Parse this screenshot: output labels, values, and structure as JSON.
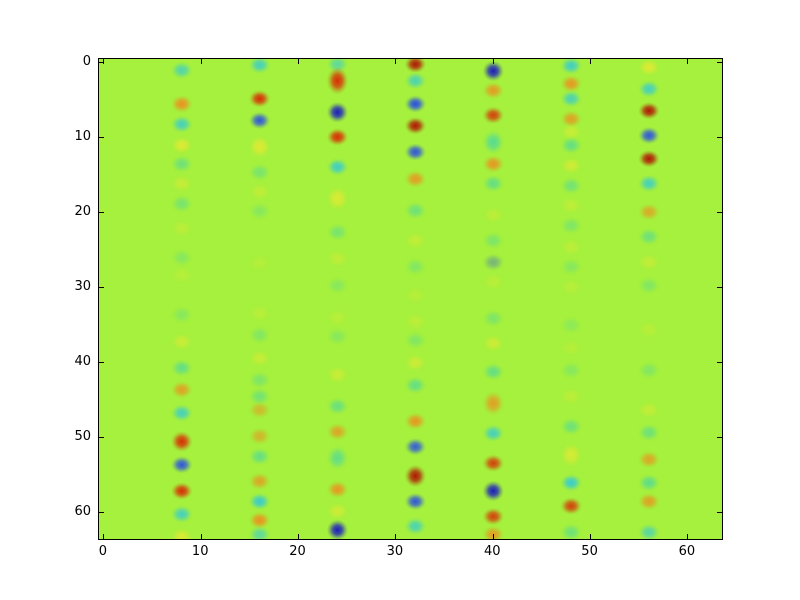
{
  "figure": {
    "background_color": "#ffffff",
    "spine_color": "#000000",
    "tick_color": "#000000"
  },
  "chart_data": {
    "type": "heatmap",
    "title": "",
    "xlabel": "",
    "ylabel": "",
    "grid": false,
    "grid_size": [
      64,
      64
    ],
    "x_range": [
      -0.5,
      63.5
    ],
    "y_range": [
      63.5,
      -0.5
    ],
    "y_axis_inverted_downward": true,
    "x_ticks": [
      0,
      10,
      20,
      30,
      40,
      50,
      60
    ],
    "y_ticks": [
      0,
      10,
      20,
      30,
      40,
      50,
      60
    ],
    "background_color": "#a5f13d",
    "palette": {
      "darkred": "#b01703",
      "red": "#d92d04",
      "orange": "#f08c1e",
      "yellow": "#e9e932",
      "teal": "#3fd4ae",
      "cyan": "#2cc8e0",
      "blue": "#2244ee",
      "darkblue": "#1b1bbf"
    },
    "description": "64x64 heatmap, uniform yellow-green background with blurred oscillating blobs along vertical stripes at x = 8,16,24,32,40,48,56",
    "columns": [
      {
        "x": 8,
        "blobs": [
          {
            "y": 1.0,
            "c": "cyan",
            "a": 0.7
          },
          {
            "y": 5.5,
            "c": "orange",
            "a": 0.95
          },
          {
            "y": 8.2,
            "c": "cyan",
            "a": 0.8
          },
          {
            "y": 11.0,
            "c": "yellow",
            "a": 0.85
          },
          {
            "y": 13.5,
            "c": "teal",
            "a": 0.55
          },
          {
            "y": 16.1,
            "c": "yellow",
            "a": 0.5
          },
          {
            "y": 18.8,
            "c": "teal",
            "a": 0.45
          },
          {
            "y": 22.1,
            "c": "yellow",
            "a": 0.35
          },
          {
            "y": 26.0,
            "c": "teal",
            "a": 0.3
          },
          {
            "y": 28.3,
            "c": "yellow",
            "a": 0.28
          },
          {
            "y": 33.6,
            "c": "teal",
            "a": 0.3
          },
          {
            "y": 37.2,
            "c": "yellow",
            "a": 0.55
          },
          {
            "y": 40.7,
            "c": "teal",
            "a": 0.65
          },
          {
            "y": 43.6,
            "c": "orange",
            "a": 0.8
          },
          {
            "y": 46.7,
            "c": "cyan",
            "a": 0.8
          },
          {
            "y": 50.5,
            "c": "red",
            "a": 1,
            "h": 1.2
          },
          {
            "y": 53.6,
            "c": "blue",
            "a": 0.9
          },
          {
            "y": 57.1,
            "c": "red",
            "a": 1
          },
          {
            "y": 60.2,
            "c": "cyan",
            "a": 0.8
          },
          {
            "y": 63.2,
            "c": "yellow",
            "a": 0.8
          }
        ]
      },
      {
        "x": 16,
        "blobs": [
          {
            "y": 0.3,
            "c": "cyan",
            "a": 0.8
          },
          {
            "y": 4.8,
            "c": "red",
            "a": 1
          },
          {
            "y": 7.7,
            "c": "blue",
            "a": 0.9
          },
          {
            "y": 11.2,
            "c": "yellow",
            "a": 0.85,
            "h": 1.3
          },
          {
            "y": 14.6,
            "c": "teal",
            "a": 0.45
          },
          {
            "y": 17.2,
            "c": "yellow",
            "a": 0.4
          },
          {
            "y": 19.8,
            "c": "teal",
            "a": 0.3
          },
          {
            "y": 26.7,
            "c": "yellow",
            "a": 0.25
          },
          {
            "y": 33.4,
            "c": "yellow",
            "a": 0.3
          },
          {
            "y": 36.3,
            "c": "teal",
            "a": 0.35
          },
          {
            "y": 39.4,
            "c": "yellow",
            "a": 0.5
          },
          {
            "y": 42.3,
            "c": "teal",
            "a": 0.4
          },
          {
            "y": 44.5,
            "c": "teal",
            "a": 0.5
          },
          {
            "y": 46.3,
            "c": "orange",
            "a": 0.55
          },
          {
            "y": 49.8,
            "c": "orange",
            "a": 0.6
          },
          {
            "y": 52.5,
            "c": "teal",
            "a": 0.65
          },
          {
            "y": 55.8,
            "c": "orange",
            "a": 0.75
          },
          {
            "y": 58.5,
            "c": "cyan",
            "a": 0.9
          },
          {
            "y": 61.0,
            "c": "orange",
            "a": 0.95
          },
          {
            "y": 62.9,
            "c": "cyan",
            "a": 0.6
          }
        ]
      },
      {
        "x": 24,
        "blobs": [
          {
            "y": 0.2,
            "c": "cyan",
            "a": 0.6
          },
          {
            "y": 2.4,
            "c": "red",
            "a": 1,
            "h": 1.6
          },
          {
            "y": 6.6,
            "c": "darkblue",
            "a": 1,
            "h": 1.2
          },
          {
            "y": 9.9,
            "c": "red",
            "a": 1
          },
          {
            "y": 13.9,
            "c": "cyan",
            "a": 0.85
          },
          {
            "y": 18.1,
            "c": "yellow",
            "a": 0.8,
            "h": 1.4
          },
          {
            "y": 22.6,
            "c": "teal",
            "a": 0.45
          },
          {
            "y": 26.1,
            "c": "yellow",
            "a": 0.4
          },
          {
            "y": 29.7,
            "c": "teal",
            "a": 0.3
          },
          {
            "y": 34.0,
            "c": "yellow",
            "a": 0.3
          },
          {
            "y": 36.5,
            "c": "teal",
            "a": 0.3
          },
          {
            "y": 41.6,
            "c": "yellow",
            "a": 0.55
          },
          {
            "y": 45.8,
            "c": "teal",
            "a": 0.6
          },
          {
            "y": 49.2,
            "c": "orange",
            "a": 0.75
          },
          {
            "y": 52.7,
            "c": "teal",
            "a": 0.65,
            "h": 1.4
          },
          {
            "y": 56.9,
            "c": "orange",
            "a": 0.9
          },
          {
            "y": 59.8,
            "c": "yellow",
            "a": 0.6
          },
          {
            "y": 62.3,
            "c": "darkblue",
            "a": 1,
            "h": 1.2
          }
        ]
      },
      {
        "x": 32,
        "blobs": [
          {
            "y": 0.2,
            "c": "darkred",
            "a": 1
          },
          {
            "y": 2.4,
            "c": "cyan",
            "a": 0.75
          },
          {
            "y": 5.5,
            "c": "blue",
            "a": 0.95
          },
          {
            "y": 8.4,
            "c": "darkred",
            "a": 1
          },
          {
            "y": 11.9,
            "c": "blue",
            "a": 0.9
          },
          {
            "y": 15.5,
            "c": "orange",
            "a": 0.85
          },
          {
            "y": 19.7,
            "c": "teal",
            "a": 0.55
          },
          {
            "y": 23.7,
            "c": "yellow",
            "a": 0.45
          },
          {
            "y": 27.2,
            "c": "teal",
            "a": 0.35
          },
          {
            "y": 31.0,
            "c": "yellow",
            "a": 0.25
          },
          {
            "y": 34.5,
            "c": "yellow",
            "a": 0.35
          },
          {
            "y": 37.0,
            "c": "teal",
            "a": 0.35
          },
          {
            "y": 40.0,
            "c": "yellow",
            "a": 0.6
          },
          {
            "y": 43.0,
            "c": "teal",
            "a": 0.65
          },
          {
            "y": 47.8,
            "c": "orange",
            "a": 0.9
          },
          {
            "y": 51.2,
            "c": "blue",
            "a": 0.85
          },
          {
            "y": 55.1,
            "c": "darkred",
            "a": 1,
            "h": 1.3
          },
          {
            "y": 58.5,
            "c": "blue",
            "a": 0.9
          },
          {
            "y": 61.8,
            "c": "cyan",
            "a": 0.75
          }
        ]
      },
      {
        "x": 40,
        "blobs": [
          {
            "y": 1.1,
            "c": "darkblue",
            "a": 1,
            "h": 1.2
          },
          {
            "y": 3.7,
            "c": "orange",
            "a": 0.85
          },
          {
            "y": 7.0,
            "c": "red",
            "a": 0.9
          },
          {
            "y": 10.6,
            "c": "teal",
            "a": 0.75,
            "h": 1.4
          },
          {
            "y": 13.5,
            "c": "orange",
            "a": 0.9
          },
          {
            "y": 16.1,
            "c": "teal",
            "a": 0.65
          },
          {
            "y": 20.3,
            "c": "yellow",
            "a": 0.35
          },
          {
            "y": 23.7,
            "c": "teal",
            "a": 0.4
          },
          {
            "y": 26.6,
            "c": "blue",
            "a": 0.35
          },
          {
            "y": 29.2,
            "c": "yellow",
            "a": 0.3
          },
          {
            "y": 34.1,
            "c": "teal",
            "a": 0.4
          },
          {
            "y": 37.4,
            "c": "yellow",
            "a": 0.6
          },
          {
            "y": 41.2,
            "c": "teal",
            "a": 0.65
          },
          {
            "y": 45.4,
            "c": "orange",
            "a": 0.8,
            "h": 1.4
          },
          {
            "y": 49.4,
            "c": "cyan",
            "a": 0.8
          },
          {
            "y": 53.4,
            "c": "red",
            "a": 0.9
          },
          {
            "y": 57.1,
            "c": "darkblue",
            "a": 1,
            "h": 1.2
          },
          {
            "y": 60.5,
            "c": "red",
            "a": 0.9
          },
          {
            "y": 62.9,
            "c": "orange",
            "a": 0.85
          }
        ]
      },
      {
        "x": 48,
        "blobs": [
          {
            "y": 0.4,
            "c": "cyan",
            "a": 0.85
          },
          {
            "y": 2.8,
            "c": "orange",
            "a": 0.9
          },
          {
            "y": 4.8,
            "c": "cyan",
            "a": 0.75
          },
          {
            "y": 7.5,
            "c": "orange",
            "a": 0.8
          },
          {
            "y": 9.2,
            "c": "yellow",
            "a": 0.55
          },
          {
            "y": 11.0,
            "c": "teal",
            "a": 0.65
          },
          {
            "y": 13.7,
            "c": "yellow",
            "a": 0.65
          },
          {
            "y": 16.4,
            "c": "teal",
            "a": 0.5
          },
          {
            "y": 19.0,
            "c": "yellow",
            "a": 0.4
          },
          {
            "y": 21.7,
            "c": "teal",
            "a": 0.38
          },
          {
            "y": 24.6,
            "c": "yellow",
            "a": 0.35
          },
          {
            "y": 27.2,
            "c": "teal",
            "a": 0.3
          },
          {
            "y": 29.9,
            "c": "yellow",
            "a": 0.28
          },
          {
            "y": 35.0,
            "c": "teal",
            "a": 0.25
          },
          {
            "y": 38.0,
            "c": "yellow",
            "a": 0.25
          },
          {
            "y": 41.0,
            "c": "teal",
            "a": 0.3
          },
          {
            "y": 44.5,
            "c": "yellow",
            "a": 0.35
          },
          {
            "y": 48.5,
            "c": "teal",
            "a": 0.55
          },
          {
            "y": 52.3,
            "c": "yellow",
            "a": 0.75,
            "h": 1.4
          },
          {
            "y": 56.0,
            "c": "cyan",
            "a": 0.9
          },
          {
            "y": 59.1,
            "c": "red",
            "a": 0.9
          },
          {
            "y": 62.6,
            "c": "teal",
            "a": 0.55
          }
        ]
      },
      {
        "x": 56,
        "blobs": [
          {
            "y": 0.6,
            "c": "yellow",
            "a": 0.85
          },
          {
            "y": 3.5,
            "c": "cyan",
            "a": 0.8
          },
          {
            "y": 6.4,
            "c": "darkred",
            "a": 1
          },
          {
            "y": 9.7,
            "c": "blue",
            "a": 0.9
          },
          {
            "y": 12.8,
            "c": "darkred",
            "a": 1
          },
          {
            "y": 16.1,
            "c": "cyan",
            "a": 0.8
          },
          {
            "y": 19.9,
            "c": "orange",
            "a": 0.7
          },
          {
            "y": 23.2,
            "c": "teal",
            "a": 0.55
          },
          {
            "y": 26.6,
            "c": "yellow",
            "a": 0.45
          },
          {
            "y": 29.7,
            "c": "teal",
            "a": 0.35
          },
          {
            "y": 35.6,
            "c": "yellow",
            "a": 0.3
          },
          {
            "y": 41.0,
            "c": "teal",
            "a": 0.35
          },
          {
            "y": 46.3,
            "c": "yellow",
            "a": 0.45
          },
          {
            "y": 49.3,
            "c": "teal",
            "a": 0.55
          },
          {
            "y": 52.9,
            "c": "orange",
            "a": 0.75
          },
          {
            "y": 56.0,
            "c": "teal",
            "a": 0.7
          },
          {
            "y": 58.5,
            "c": "orange",
            "a": 0.8
          },
          {
            "y": 62.6,
            "c": "cyan",
            "a": 0.65
          }
        ]
      }
    ]
  }
}
